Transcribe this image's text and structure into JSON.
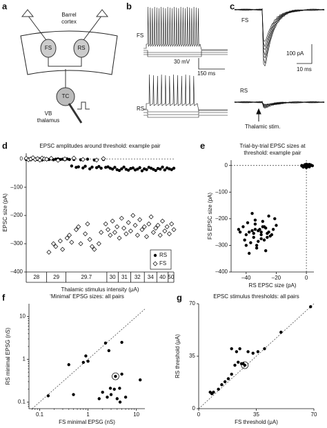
{
  "panel_labels": [
    "a",
    "b",
    "c",
    "d",
    "e",
    "f",
    "g"
  ],
  "diagram": {
    "cortex": [
      "Barrel",
      "cortex"
    ],
    "fs": "FS",
    "rs": "RS",
    "tc": "TC",
    "thalamus": [
      "VB",
      "thalamus"
    ]
  },
  "traces_b": {
    "fs": "FS",
    "rs": "RS",
    "scale_v": "30 mV",
    "scale_t": "150 ms"
  },
  "traces_c": {
    "fs": "FS",
    "rs": "RS",
    "scale_v": "100 pA",
    "scale_t": "10 ms",
    "stim": "Thalamic stim."
  },
  "chart_data": [
    {
      "type": "scatter",
      "title": [
        "EPSC amplitudes around threshold: example pair"
      ],
      "xlabel": "Thalamic stimulus intensity (μA)",
      "ylabel": "EPSC size (pA)",
      "xlim": [
        0,
        130
      ],
      "ylim": [
        -400,
        20
      ],
      "yticks": [
        0,
        {
          "value": -100,
          "label": "–100"
        },
        {
          "value": -200,
          "label": "–200"
        },
        {
          "value": -300,
          "label": "–300"
        },
        {
          "value": -400,
          "label": "–400"
        }
      ],
      "xgroups": [
        {
          "label": "28",
          "range": [
            0,
            18
          ]
        },
        {
          "label": "29",
          "range": [
            18,
            35
          ]
        },
        {
          "label": "29.7",
          "range": [
            35,
            71
          ]
        },
        {
          "label": "30",
          "range": [
            71,
            81
          ]
        },
        {
          "label": "31",
          "range": [
            81,
            92
          ]
        },
        {
          "label": "32",
          "range": [
            92,
            104
          ]
        },
        {
          "label": "34",
          "range": [
            104,
            115
          ]
        },
        {
          "label": "40",
          "range": [
            115,
            125
          ]
        },
        {
          "label": "50",
          "range": [
            125,
            130
          ]
        }
      ],
      "zero_line_y": true,
      "legend": "lower right",
      "x": [
        0,
        2,
        4,
        6,
        8,
        10,
        12,
        14,
        16,
        18,
        20,
        22,
        24,
        26,
        28,
        30,
        32,
        34,
        36,
        38,
        40,
        42,
        44,
        46,
        48,
        50,
        52,
        54,
        56,
        58,
        60,
        62,
        64,
        66,
        68,
        70,
        72,
        74,
        76,
        78,
        80,
        82,
        84,
        86,
        88,
        90,
        92,
        94,
        96,
        98,
        100,
        102,
        104,
        106,
        108,
        110,
        112,
        114,
        116,
        118,
        120,
        122,
        124,
        126,
        128,
        130
      ],
      "series": [
        {
          "name": "RS",
          "color": "#000",
          "marker": "circle",
          "values": [
            -2,
            0,
            -3,
            1,
            -1,
            -2,
            0,
            -4,
            -1,
            0,
            -2,
            1,
            -3,
            -1,
            0,
            -2,
            -1,
            -3,
            0,
            -2,
            -25,
            -2,
            -30,
            -28,
            -3,
            -32,
            -26,
            -1,
            -35,
            -29,
            -4,
            -31,
            -27,
            -33,
            -2,
            -30,
            -28,
            -33,
            -36,
            -30,
            -38,
            -41,
            -35,
            -29,
            -37,
            -40,
            -34,
            -32,
            -39,
            -36,
            -31,
            -42,
            -35,
            -38,
            -30,
            -33,
            -37,
            -41,
            -34,
            -36,
            -29,
            -39,
            -32,
            -35,
            -38,
            -33
          ]
        },
        {
          "name": "FS",
          "color": "#000",
          "marker": "diamond",
          "values": [
            2,
            -3,
            0,
            4,
            -2,
            1,
            -4,
            3,
            0,
            -1,
            -330,
            2,
            -300,
            -310,
            -5,
            -290,
            -320,
            0,
            -280,
            -270,
            -295,
            3,
            -250,
            -240,
            -300,
            -2,
            -265,
            -230,
            -285,
            -310,
            -320,
            -4,
            -300,
            -260,
            1,
            -230,
            -250,
            -270,
            -220,
            -260,
            -240,
            -280,
            -210,
            -245,
            -265,
            -225,
            -255,
            -200,
            -235,
            -270,
            -215,
            -250,
            -240,
            -275,
            -230,
            -205,
            -260,
            -245,
            -235,
            -270,
            -220,
            -255,
            -240,
            -265,
            -230,
            -250
          ]
        }
      ]
    },
    {
      "type": "scatter",
      "title": [
        "Trial-by-trial EPSC sizes at",
        "threshold: example pair"
      ],
      "xlabel": "RS EPSC size (pA)",
      "ylabel": "FS EPSC size (pA)",
      "xlim": [
        -50,
        5
      ],
      "ylim": [
        -400,
        20
      ],
      "xticks": [
        {
          "value": -40,
          "label": "–40"
        },
        {
          "value": -20,
          "label": "–20"
        },
        0
      ],
      "yticks": [
        0,
        {
          "value": -100,
          "label": "–100"
        },
        {
          "value": -200,
          "label": "–200"
        },
        {
          "value": -300,
          "label": "–300"
        },
        {
          "value": -400,
          "label": "–400"
        }
      ],
      "zero_line_x": true,
      "zero_line_y": true,
      "series": [
        {
          "color": "#000",
          "marker": "circle",
          "x": [
            -3,
            -2,
            -1,
            0,
            1,
            2,
            3,
            -2,
            0,
            1,
            2,
            -1,
            0,
            3,
            -3,
            1,
            2,
            0,
            -1,
            4,
            -45,
            -42,
            -40,
            -38,
            -36,
            -35,
            -34,
            -33,
            -32,
            -30,
            -29,
            -28,
            -27,
            -26,
            -25,
            -24,
            -22,
            -20,
            -44,
            -41,
            -39,
            -37,
            -36,
            -34,
            -33,
            -31,
            -30,
            -28,
            -27,
            -25,
            -23,
            -21,
            -38,
            -35,
            -32,
            -29,
            -26,
            -40,
            -34,
            -30
          ],
          "values": [
            0,
            -2,
            3,
            1,
            -4,
            0,
            2,
            -6,
            -1,
            0,
            4,
            -3,
            -8,
            1,
            -2,
            3,
            -5,
            5,
            0,
            -1,
            -240,
            -230,
            -260,
            -250,
            -180,
            -270,
            -220,
            -300,
            -245,
            -260,
            -210,
            -280,
            -235,
            -255,
            -190,
            -265,
            -240,
            -225,
            -250,
            -280,
            -215,
            -290,
            -245,
            -205,
            -310,
            -240,
            -275,
            -230,
            -320,
            -250,
            -260,
            -200,
            -330,
            -255,
            -285,
            -230,
            -270,
            -300,
            -240,
            -250
          ]
        }
      ]
    },
    {
      "type": "scatter",
      "title": [
        "‘Minimal’ EPSG sizes: all pairs"
      ],
      "xlabel": "FS minimal EPSG (nS)",
      "ylabel": "RS minimal EPSG (nS)",
      "log": true,
      "xlim": [
        0.06,
        15
      ],
      "ylim": [
        0.07,
        20
      ],
      "xticks": [
        0.1,
        1,
        10
      ],
      "yticks": [
        0.1,
        1,
        10
      ],
      "unity_line": true,
      "highlight": 14,
      "series": [
        {
          "color": "#000",
          "marker": "circle",
          "x": [
            0.15,
            0.4,
            0.5,
            0.8,
            0.9,
            1,
            1.7,
            2,
            2.3,
            2.5,
            2.7,
            2.9,
            3,
            3.5,
            3.7,
            4,
            4.5,
            4.6,
            5,
            5,
            6,
            12
          ],
          "values": [
            0.14,
            0.75,
            0.15,
            0.85,
            1.2,
            0.9,
            0.12,
            0.17,
            2.4,
            0.13,
            1.6,
            0.21,
            0.15,
            0.2,
            0.4,
            0.12,
            0.21,
            0.1,
            2.5,
            0.45,
            0.13,
            0.33
          ]
        }
      ]
    },
    {
      "type": "scatter",
      "title": [
        "EPSC stimulus thresholds: all pairs"
      ],
      "xlabel": "FS threshold (μA)",
      "ylabel": "RS threshold (μA)",
      "xlim": [
        0,
        70
      ],
      "ylim": [
        0,
        70
      ],
      "xticks": [
        0,
        35,
        70
      ],
      "yticks": [
        0,
        35,
        70
      ],
      "unity_line": true,
      "highlight": 15,
      "series": [
        {
          "color": "#000",
          "marker": "circle",
          "x": [
            7,
            8,
            9,
            12,
            14,
            16,
            18,
            20,
            20,
            22,
            23,
            24,
            25,
            26,
            27,
            28,
            30,
            33,
            36,
            40,
            50,
            68
          ],
          "values": [
            11,
            10,
            11,
            13,
            16,
            18,
            20,
            23,
            40,
            29,
            38,
            31,
            40,
            30,
            30,
            29,
            38,
            37,
            38,
            40,
            51,
            68
          ]
        }
      ]
    }
  ]
}
